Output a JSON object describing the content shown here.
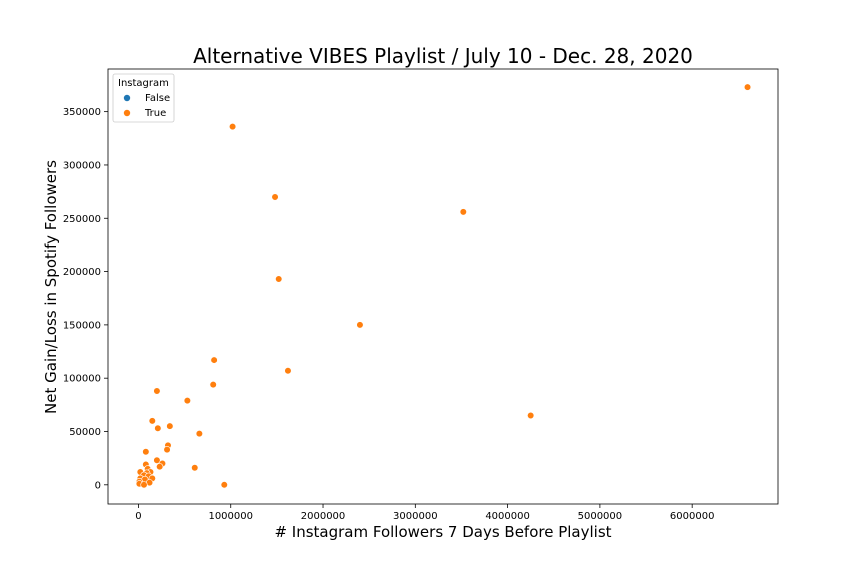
{
  "chart_data": {
    "type": "scatter",
    "title": "Alternative VIBES Playlist / July 10 - Dec. 28, 2020",
    "xlabel": "# Instagram Followers 7 Days Before Playlist",
    "ylabel": "Net Gain/Loss in Spotify Followers",
    "xlim": [
      -330000,
      6930000
    ],
    "ylim": [
      -18000,
      390000
    ],
    "xticks": [
      0,
      1000000,
      2000000,
      3000000,
      4000000,
      5000000,
      6000000
    ],
    "yticks": [
      0,
      50000,
      100000,
      150000,
      200000,
      250000,
      300000,
      350000
    ],
    "grid": false,
    "legend": {
      "title": "Instagram",
      "placement": "top-left",
      "entries": [
        {
          "label": "False",
          "color": "#1f77b4"
        },
        {
          "label": "True",
          "color": "#ff7f0e"
        }
      ]
    },
    "series": [
      {
        "name": "True",
        "color": "#ff7f0e",
        "points": [
          [
            6600000,
            373000
          ],
          [
            1020000,
            336000
          ],
          [
            1480000,
            270000
          ],
          [
            3520000,
            256000
          ],
          [
            1520000,
            193000
          ],
          [
            2400000,
            150000
          ],
          [
            820000,
            117000
          ],
          [
            1620000,
            107000
          ],
          [
            810000,
            94000
          ],
          [
            200000,
            88000
          ],
          [
            530000,
            79000
          ],
          [
            4250000,
            65000
          ],
          [
            150000,
            60000
          ],
          [
            340000,
            55000
          ],
          [
            210000,
            53000
          ],
          [
            660000,
            48000
          ],
          [
            320000,
            37000
          ],
          [
            310000,
            33000
          ],
          [
            80000,
            31000
          ],
          [
            200000,
            23000
          ],
          [
            260000,
            20000
          ],
          [
            80000,
            19000
          ],
          [
            230000,
            17000
          ],
          [
            610000,
            16000
          ],
          [
            100000,
            15000
          ],
          [
            20000,
            12000
          ],
          [
            130000,
            12000
          ],
          [
            90000,
            11000
          ],
          [
            60000,
            9000
          ],
          [
            110000,
            8000
          ],
          [
            150000,
            6000
          ],
          [
            20000,
            6000
          ],
          [
            70000,
            5000
          ],
          [
            10000,
            3000
          ],
          [
            120000,
            2000
          ],
          [
            10000,
            1000
          ],
          [
            930000,
            0
          ],
          [
            60000,
            0
          ]
        ]
      }
    ]
  }
}
